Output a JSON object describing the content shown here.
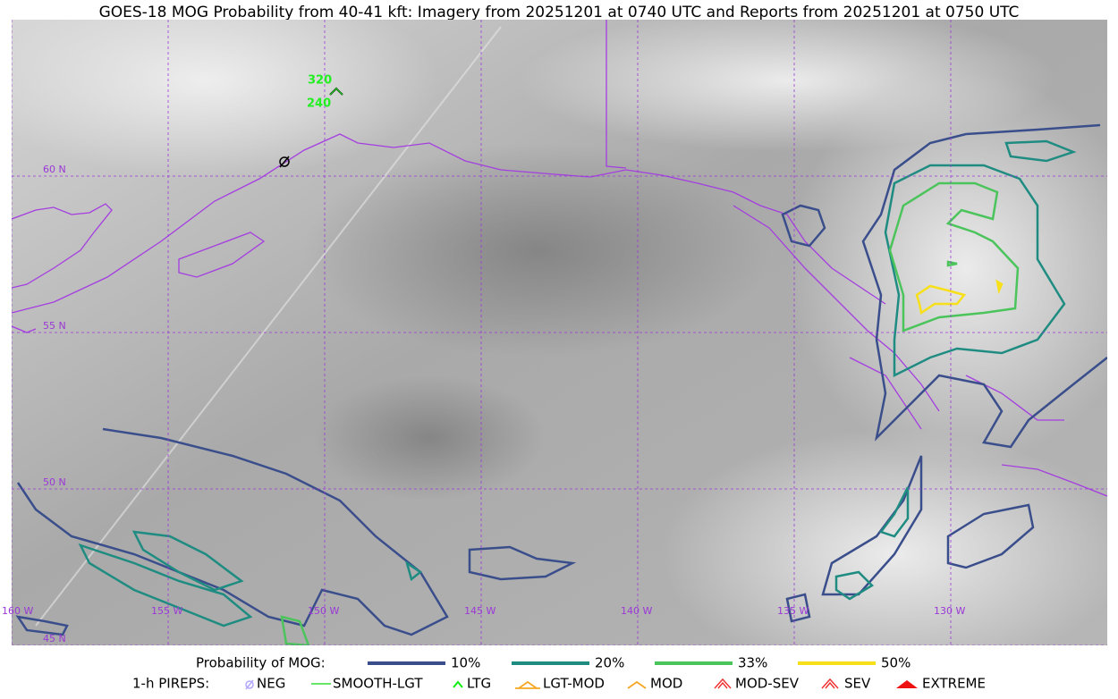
{
  "title": "GOES-18 MOG Probability from 40-41 kft: Imagery from 20251201 at 0740 UTC and Reports from 20251201 at 0750 UTC",
  "map": {
    "lat_labels": [
      "60 N",
      "55 N",
      "50 N",
      "45 N"
    ],
    "lon_labels": [
      "160 W",
      "155 W",
      "150 W",
      "145 W",
      "140 W",
      "135 W",
      "130 W"
    ],
    "pirep_labels": [
      "320",
      "240"
    ]
  },
  "legend": {
    "probability": {
      "label": "Probability of MOG:",
      "items": [
        {
          "name": "10%",
          "color": "#3a4e8c"
        },
        {
          "name": "20%",
          "color": "#1f8c82"
        },
        {
          "name": "33%",
          "color": "#4cc45c"
        },
        {
          "name": "50%",
          "color": "#f7e019"
        }
      ]
    },
    "pireps": {
      "label": "1-h PIREPS:",
      "items": [
        {
          "name": "NEG",
          "color": "#b0a8ff"
        },
        {
          "name": "SMOOTH-LGT",
          "color": "#33dd33"
        },
        {
          "name": "LTG",
          "color": "#11ee11"
        },
        {
          "name": "LGT-MOD",
          "color": "#f5a623"
        },
        {
          "name": "MOD",
          "color": "#f5a623"
        },
        {
          "name": "MOD-SEV",
          "color": "#ee3333"
        },
        {
          "name": "SEV",
          "color": "#ee3333"
        },
        {
          "name": "EXTREME",
          "color": "#ee1111"
        }
      ]
    }
  }
}
